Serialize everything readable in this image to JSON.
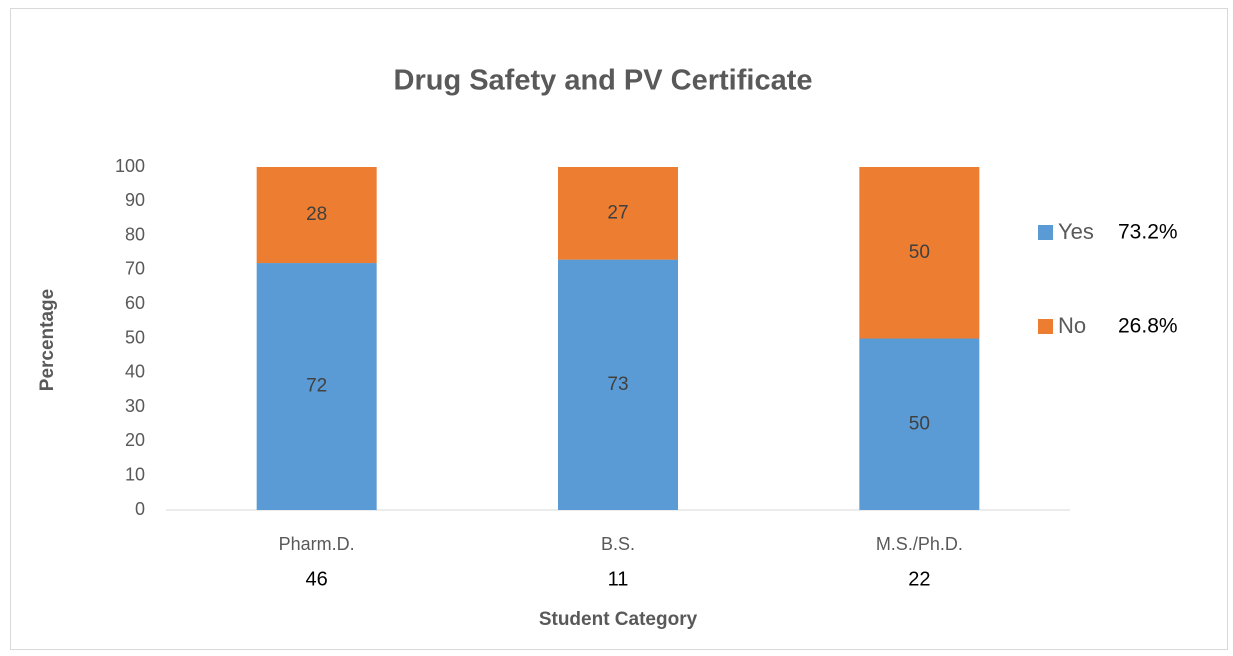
{
  "chart_data": {
    "type": "stacked_bar",
    "title": "Drug Safety and PV Certificate",
    "x_label": "Student Category",
    "y_label": "Percentage",
    "categories": [
      "Pharm.D.",
      "B.S.",
      "M.S./Ph.D."
    ],
    "category_counts": [
      46,
      11,
      22
    ],
    "series": [
      {
        "name": "Yes",
        "color": "#5b9bd5",
        "values": [
          72,
          73,
          50
        ],
        "total_label": "73.2%"
      },
      {
        "name": "No",
        "color": "#ed7d31",
        "values": [
          28,
          27,
          50
        ],
        "total_label": "26.8%"
      }
    ],
    "ylim": [
      0,
      100
    ],
    "yticks": [
      0,
      10,
      20,
      30,
      40,
      50,
      60,
      70,
      80,
      90,
      100
    ],
    "grid": false,
    "legend": "right"
  }
}
